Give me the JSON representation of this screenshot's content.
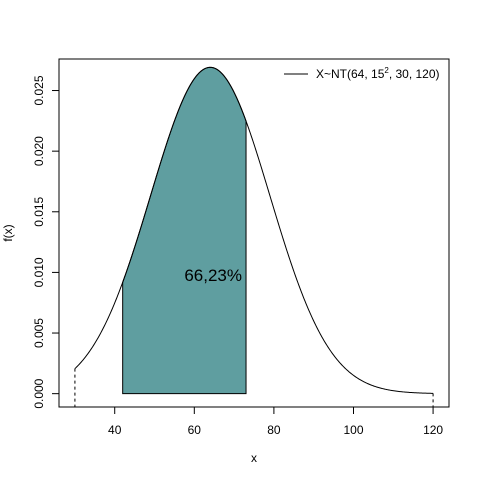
{
  "chart_data": {
    "type": "area",
    "title": "",
    "xlabel": "x",
    "ylabel": "f(x)",
    "xlim": [
      26,
      124
    ],
    "ylim": [
      -0.0011,
      0.0276
    ],
    "xticks": [
      40,
      60,
      80,
      100,
      120
    ],
    "yticks": [
      0.0,
      0.005,
      0.01,
      0.015,
      0.02,
      0.025
    ],
    "ytick_labels": [
      "0.000",
      "0.005",
      "0.010",
      "0.015",
      "0.020",
      "0.025"
    ],
    "distribution": {
      "mean": 64,
      "sd": 15,
      "lower_truncation": 30,
      "upper_truncation": 120
    },
    "shaded_interval": [
      42,
      73
    ],
    "shade_color": "#5f9ea0",
    "line_color": "#000000",
    "annotation": {
      "text": "66,23%",
      "x": 57.5,
      "y": 0.0098
    },
    "legend": {
      "position": "top-right",
      "entries": [
        {
          "text_main": "X~NT(64, 15",
          "superscript": "2",
          "text_rest": ", 30, 120)"
        }
      ]
    },
    "grid": false
  }
}
